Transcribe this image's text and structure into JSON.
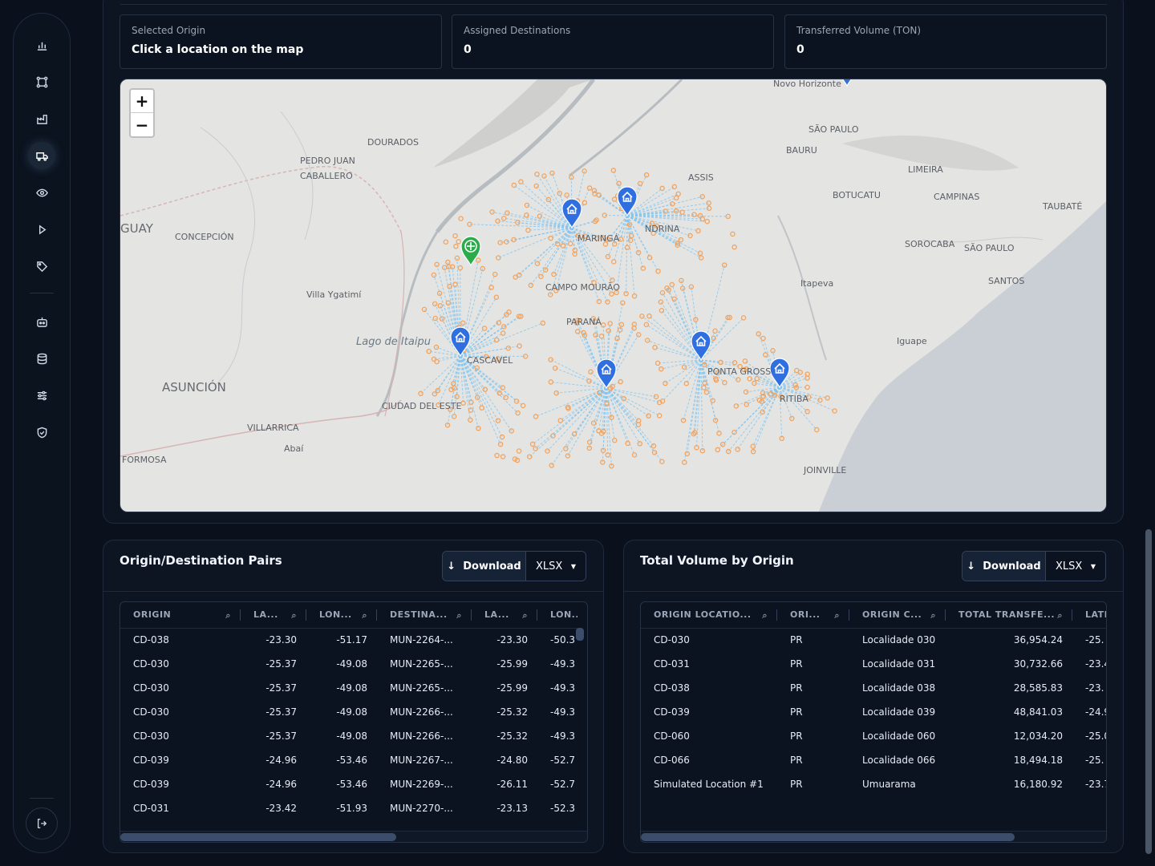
{
  "stats": {
    "selected_origin": {
      "label": "Selected Origin",
      "value": "Click a location on the map"
    },
    "assigned_destinations": {
      "label": "Assigned Destinations",
      "value": "0"
    },
    "transferred_volume": {
      "label": "Transferred Volume (TON)",
      "value": "0"
    }
  },
  "map": {
    "zoom_in": "+",
    "zoom_out": "−",
    "labels": [
      "Novo Horizonte",
      "SÃO PAULO",
      "BAURU",
      "DOURADOS",
      "PEDRO JUAN",
      "CABALLERO",
      "ASSIS",
      "LIMEIRA",
      "BOTUCATU",
      "CAMPINAS",
      "TAUBATÉ",
      "GUAY",
      "CONCEPCIÓN",
      "MARINGÁ",
      "NDRINA",
      "SOROCABA",
      "SÃO PAULO",
      "SANTOS",
      "Itapeva",
      "CAMPO MOURÃO",
      "Villa Ygatimí",
      "PARANÁ",
      "Iguape",
      "Lago de Itaipu",
      "CASCAVEL",
      "PONTA GROSS",
      "ASUNCIÓN",
      "RITIBA",
      "CIUDAD DEL ESTE",
      "VILLARRICA",
      "Abaí",
      "FORMOSA",
      "JOINVILLE"
    ]
  },
  "pairs": {
    "title": "Origin/Destination Pairs",
    "download_label": "Download",
    "format": "XLSX",
    "columns": [
      "ORIGIN",
      "LA...",
      "LON...",
      "DESTINA...",
      "LA...",
      "LON..."
    ],
    "rows": [
      [
        "CD-038",
        "-23.30",
        "-51.17",
        "MUN-2264-...",
        "-23.30",
        "-50.3"
      ],
      [
        "CD-030",
        "-25.37",
        "-49.08",
        "MUN-2265-...",
        "-25.99",
        "-49.3"
      ],
      [
        "CD-030",
        "-25.37",
        "-49.08",
        "MUN-2265-...",
        "-25.99",
        "-49.3"
      ],
      [
        "CD-030",
        "-25.37",
        "-49.08",
        "MUN-2266-...",
        "-25.32",
        "-49.3"
      ],
      [
        "CD-030",
        "-25.37",
        "-49.08",
        "MUN-2266-...",
        "-25.32",
        "-49.3"
      ],
      [
        "CD-039",
        "-24.96",
        "-53.46",
        "MUN-2267-...",
        "-24.80",
        "-52.7"
      ],
      [
        "CD-039",
        "-24.96",
        "-53.46",
        "MUN-2269-...",
        "-26.11",
        "-52.7"
      ],
      [
        "CD-031",
        "-23.42",
        "-51.93",
        "MUN-2270-...",
        "-23.13",
        "-52.3"
      ]
    ]
  },
  "volume": {
    "title": "Total Volume by Origin",
    "download_label": "Download",
    "format": "XLSX",
    "columns": [
      "ORIGIN LOCATIO...",
      "ORI...",
      "ORIGIN C...",
      "TOTAL TRANSFE...",
      "LATI"
    ],
    "rows": [
      [
        "CD-030",
        "PR",
        "Localidade 030",
        "36,954.24",
        "-25."
      ],
      [
        "CD-031",
        "PR",
        "Localidade 031",
        "30,732.66",
        "-23.4"
      ],
      [
        "CD-038",
        "PR",
        "Localidade 038",
        "28,585.83",
        "-23."
      ],
      [
        "CD-039",
        "PR",
        "Localidade 039",
        "48,841.03",
        "-24.9"
      ],
      [
        "CD-060",
        "PR",
        "Localidade 060",
        "12,034.20",
        "-25.0"
      ],
      [
        "CD-066",
        "PR",
        "Localidade 066",
        "18,494.18",
        "-25."
      ],
      [
        "Simulated Location #1",
        "PR",
        "Umuarama",
        "16,180.92",
        "-23.7"
      ]
    ]
  },
  "sidebar_icons": [
    "chart-icon",
    "network-icon",
    "factory-icon",
    "truck-icon",
    "eye-icon",
    "play-icon",
    "tag-icon",
    "robot-icon",
    "database-icon",
    "sliders-icon",
    "shield-icon"
  ],
  "colors": {
    "accent": "#2f6fe0",
    "destination_dot": "#f2a35e",
    "selected_pin": "#2bab4a",
    "flow_line": "#7fc4f0"
  }
}
